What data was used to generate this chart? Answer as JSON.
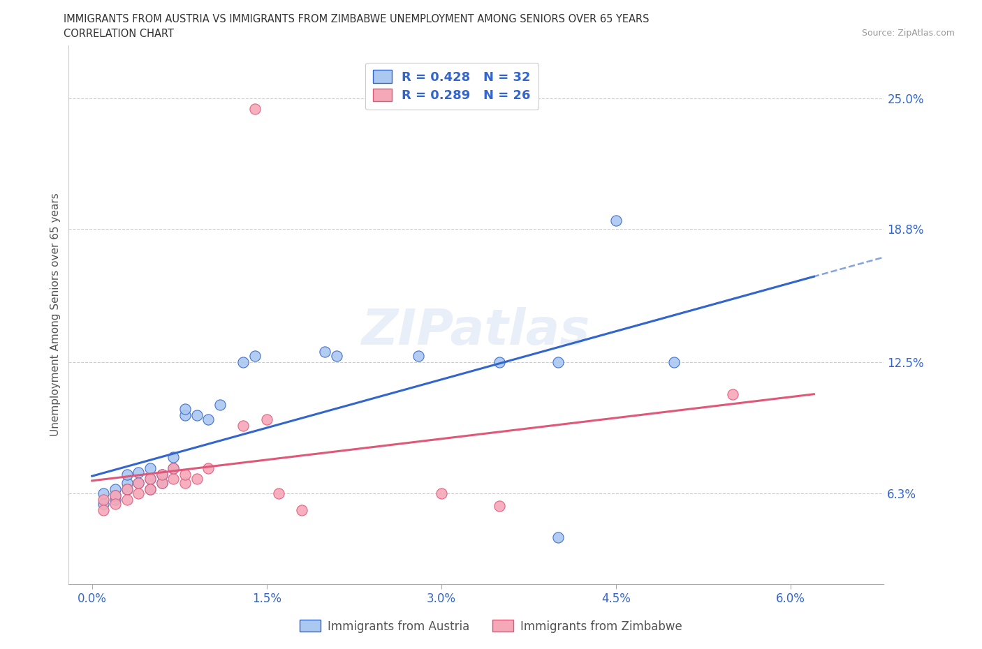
{
  "title_line1": "IMMIGRANTS FROM AUSTRIA VS IMMIGRANTS FROM ZIMBABWE UNEMPLOYMENT AMONG SENIORS OVER 65 YEARS",
  "title_line2": "CORRELATION CHART",
  "source": "Source: ZipAtlas.com",
  "ylabel": "Unemployment Among Seniors over 65 years",
  "xticklabels": [
    "0.0%",
    "1.5%",
    "3.0%",
    "4.5%",
    "6.0%"
  ],
  "xticks": [
    0.0,
    0.015,
    0.03,
    0.045,
    0.06
  ],
  "ytick_labels": [
    "6.3%",
    "12.5%",
    "18.8%",
    "25.0%"
  ],
  "ytick_values": [
    0.063,
    0.125,
    0.188,
    0.25
  ],
  "xlim": [
    -0.002,
    0.068
  ],
  "ylim": [
    0.02,
    0.275
  ],
  "austria_color": "#aac8f0",
  "zimbabwe_color": "#f5a8b8",
  "austria_line_color": "#3366cc",
  "zimbabwe_line_color": "#e05878",
  "austria_scatter": [
    [
      0.001,
      0.063
    ],
    [
      0.001,
      0.058
    ],
    [
      0.002,
      0.065
    ],
    [
      0.002,
      0.06
    ],
    [
      0.002,
      0.062
    ],
    [
      0.003,
      0.068
    ],
    [
      0.003,
      0.065
    ],
    [
      0.003,
      0.072
    ],
    [
      0.004,
      0.068
    ],
    [
      0.004,
      0.073
    ],
    [
      0.005,
      0.07
    ],
    [
      0.005,
      0.075
    ],
    [
      0.005,
      0.065
    ],
    [
      0.006,
      0.068
    ],
    [
      0.006,
      0.072
    ],
    [
      0.007,
      0.075
    ],
    [
      0.007,
      0.08
    ],
    [
      0.008,
      0.1
    ],
    [
      0.008,
      0.103
    ],
    [
      0.009,
      0.1
    ],
    [
      0.01,
      0.098
    ],
    [
      0.011,
      0.105
    ],
    [
      0.013,
      0.125
    ],
    [
      0.014,
      0.128
    ],
    [
      0.02,
      0.13
    ],
    [
      0.021,
      0.128
    ],
    [
      0.028,
      0.128
    ],
    [
      0.035,
      0.125
    ],
    [
      0.04,
      0.125
    ],
    [
      0.04,
      0.042
    ],
    [
      0.05,
      0.125
    ],
    [
      0.045,
      0.192
    ]
  ],
  "zimbabwe_scatter": [
    [
      0.001,
      0.06
    ],
    [
      0.001,
      0.055
    ],
    [
      0.002,
      0.062
    ],
    [
      0.002,
      0.058
    ],
    [
      0.003,
      0.065
    ],
    [
      0.003,
      0.06
    ],
    [
      0.004,
      0.068
    ],
    [
      0.004,
      0.063
    ],
    [
      0.005,
      0.07
    ],
    [
      0.005,
      0.065
    ],
    [
      0.006,
      0.068
    ],
    [
      0.006,
      0.072
    ],
    [
      0.007,
      0.07
    ],
    [
      0.007,
      0.075
    ],
    [
      0.008,
      0.068
    ],
    [
      0.008,
      0.072
    ],
    [
      0.009,
      0.07
    ],
    [
      0.01,
      0.075
    ],
    [
      0.013,
      0.095
    ],
    [
      0.015,
      0.098
    ],
    [
      0.016,
      0.063
    ],
    [
      0.018,
      0.055
    ],
    [
      0.014,
      0.245
    ],
    [
      0.03,
      0.063
    ],
    [
      0.035,
      0.057
    ],
    [
      0.055,
      0.11
    ]
  ],
  "austria_R": 0.428,
  "austria_N": 32,
  "zimbabwe_R": 0.289,
  "zimbabwe_N": 26,
  "watermark_text": "ZIPatlas",
  "legend_label_austria": "Immigrants from Austria",
  "legend_label_zimbabwe": "Immigrants from Zimbabwe",
  "grid_color": "#cccccc",
  "title_color": "#333333",
  "axis_label_color": "#555555",
  "tick_color_blue": "#3366cc",
  "legend_R_color_black": "#333333",
  "legend_val_color": "#3366cc"
}
